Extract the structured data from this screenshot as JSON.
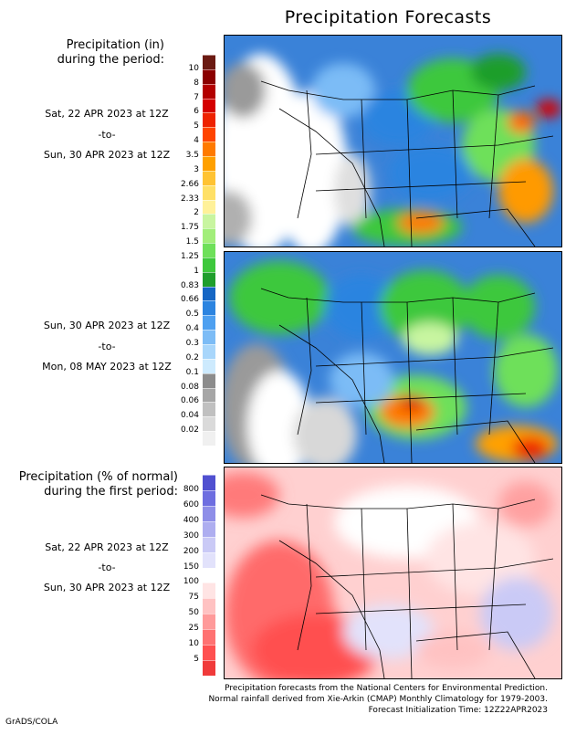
{
  "title": "Precipitation Forecasts",
  "section1": {
    "title_line1": "Precipitation (in)",
    "title_line2": "during the period:",
    "period1": {
      "start": "Sat, 22 APR 2023 at 12Z",
      "sep": "-to-",
      "end": "Sun, 30 APR 2023 at 12Z"
    },
    "period2": {
      "start": "Sun, 30 APR 2023 at 12Z",
      "sep": "-to-",
      "end": "Mon, 08 MAY 2023 at 12Z"
    },
    "colorbar": {
      "ticks": [
        "10",
        "8",
        "7",
        "6",
        "5",
        "4",
        "3.5",
        "3",
        "2.66",
        "2.33",
        "2",
        "1.75",
        "1.5",
        "1.25",
        "1",
        "0.83",
        "0.66",
        "0.5",
        "0.4",
        "0.3",
        "0.2",
        "0.1",
        "0.08",
        "0.06",
        "0.04",
        "0.02"
      ],
      "colors": [
        "#6b1a12",
        "#8b0000",
        "#b30000",
        "#d40000",
        "#ee2200",
        "#ff4400",
        "#ff7a00",
        "#ffa000",
        "#ffc333",
        "#ffe066",
        "#fff199",
        "#c8f5a0",
        "#a2ee7a",
        "#6ee05a",
        "#3ec83c",
        "#1f9e2c",
        "#1566c4",
        "#2c84e0",
        "#4ea0f0",
        "#7cbcf6",
        "#a8d6fb",
        "#cdeafd",
        "#8c8c8c",
        "#a6a6a6",
        "#c0c0c0",
        "#dadada",
        "#f0f0f0"
      ]
    }
  },
  "section2": {
    "title_line1": "Precipitation (% of normal)",
    "title_line2": "during the first period:",
    "period": {
      "start": "Sat, 22 APR 2023 at 12Z",
      "sep": "-to-",
      "end": "Sun, 30 APR 2023 at 12Z"
    },
    "colorbar": {
      "ticks": [
        "800",
        "600",
        "400",
        "300",
        "200",
        "150",
        "100",
        "75",
        "50",
        "25",
        "10",
        "5"
      ],
      "colors": [
        "#5050d0",
        "#6e6ee0",
        "#8e8ee8",
        "#aeaef0",
        "#cacaf6",
        "#e2e2fb",
        "#ffffff",
        "#ffe4e4",
        "#ffc2c2",
        "#ff9a9a",
        "#ff7272",
        "#ff5050",
        "#f03a3a"
      ]
    }
  },
  "footer": {
    "line1": "Precipitation forecasts from the National Centers for Environmental Prediction.",
    "line2": "Normal rainfall derived from Xie-Arkin (CMAP) Monthly Climatology for 1979-2003.",
    "line3": "Forecast Initialization Time: 12Z22APR2023"
  },
  "credit": "GrADS/COLA"
}
